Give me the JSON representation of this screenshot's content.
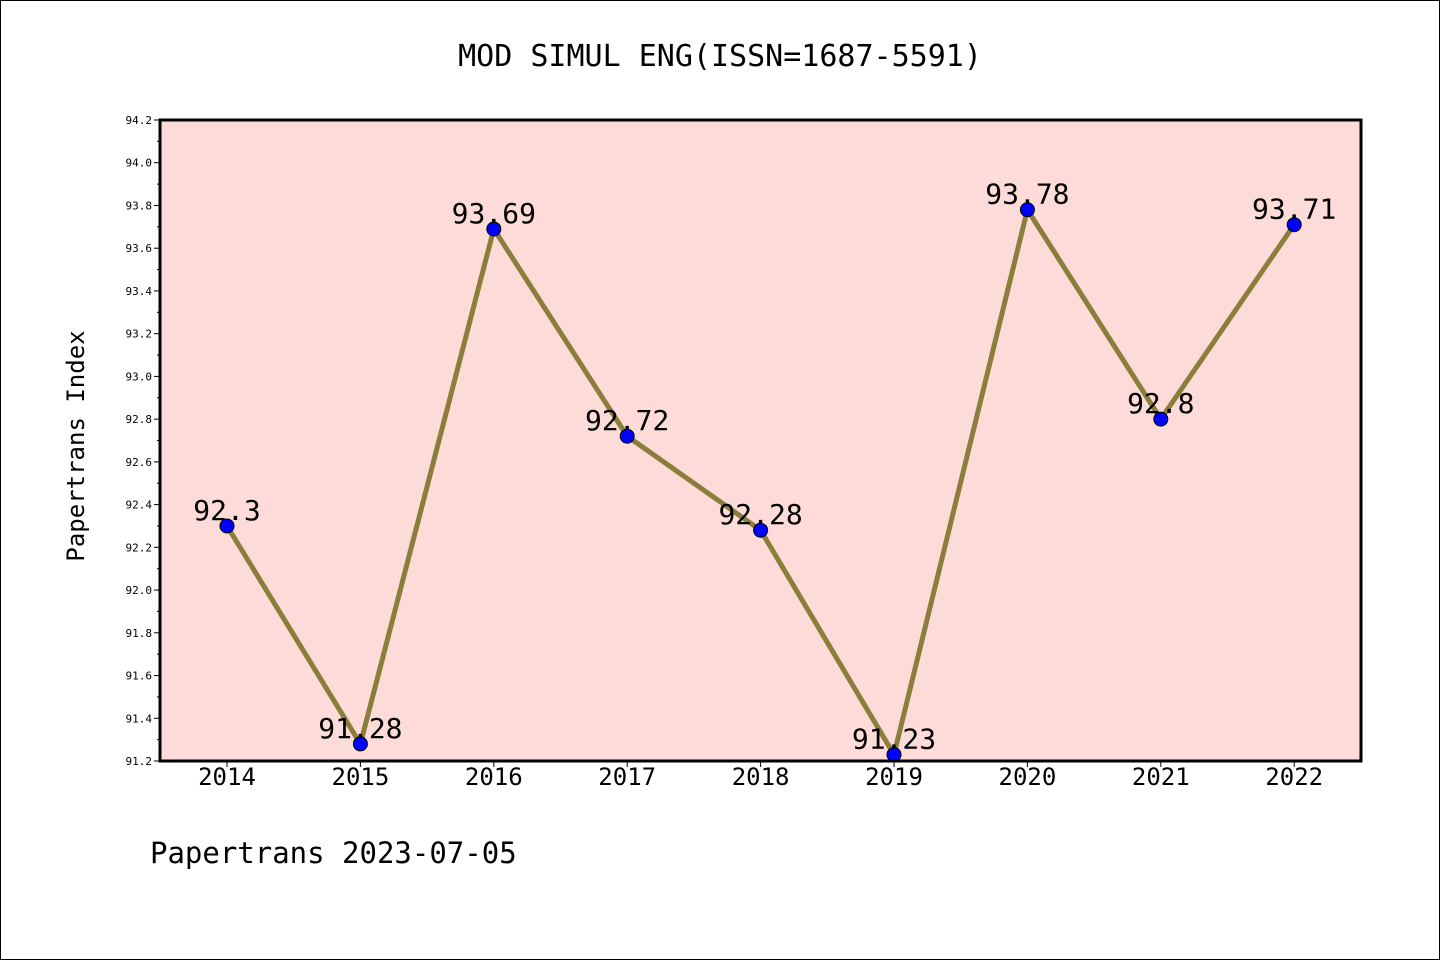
{
  "chart_data": {
    "type": "line",
    "title": "MOD SIMUL ENG(ISSN=1687-5591)",
    "ylabel": "Papertrans Index",
    "xlabel": "",
    "categories": [
      "2014",
      "2015",
      "2016",
      "2017",
      "2018",
      "2019",
      "2020",
      "2021",
      "2022"
    ],
    "series": [
      {
        "values": [
          92.3,
          91.28,
          93.69,
          92.72,
          92.28,
          91.23,
          93.78,
          92.8,
          93.71
        ]
      }
    ],
    "data_labels": [
      "92.3",
      "91.28",
      "93.69",
      "92.72",
      "92.28",
      "91.23",
      "93.78",
      "92.8",
      "93.71"
    ],
    "ylim": [
      91.2,
      94.2
    ],
    "yticks": [
      "91.2",
      "91.4",
      "91.6",
      "91.8",
      "92.0",
      "92.2",
      "92.4",
      "92.6",
      "92.8",
      "93.0",
      "93.2",
      "93.4",
      "93.6",
      "93.8",
      "94.0",
      "94.2"
    ],
    "grid": false,
    "colors": {
      "plot_background": "#fddbd8",
      "line": "#8b7d3a",
      "marker": "#0000ff"
    }
  },
  "footer": "Papertrans 2023-07-05"
}
